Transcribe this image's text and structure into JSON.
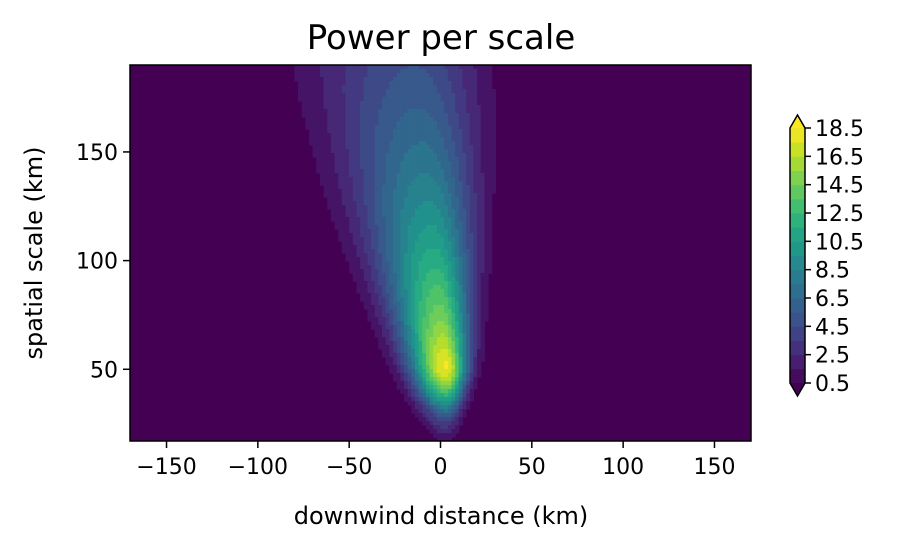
{
  "chart_data": {
    "type": "heatmap",
    "subtype": "filled-contour",
    "title": "Power per scale",
    "xlabel": "downwind distance (km)",
    "ylabel": "spatial scale (km)",
    "xlim": [
      -170,
      170
    ],
    "ylim": [
      17,
      190
    ],
    "xticks": [
      -150,
      -100,
      -50,
      0,
      50,
      100,
      150
    ],
    "xtick_labels": [
      "−150",
      "−100",
      "−50",
      "0",
      "50",
      "100",
      "150"
    ],
    "yticks": [
      50,
      100,
      150
    ],
    "ytick_labels": [
      "50",
      "100",
      "150"
    ],
    "colormap": "viridis",
    "colorbar": {
      "extend": "both",
      "levels": [
        0.5,
        1.5,
        2.5,
        3.5,
        4.5,
        5.5,
        6.5,
        7.5,
        8.5,
        9.5,
        10.5,
        11.5,
        12.5,
        13.5,
        14.5,
        15.5,
        16.5,
        17.5,
        18.5
      ],
      "tick_values": [
        0.5,
        2.5,
        4.5,
        6.5,
        8.5,
        10.5,
        12.5,
        14.5,
        16.5,
        18.5
      ],
      "tick_labels": [
        "0.5",
        "2.5",
        "4.5",
        "6.5",
        "8.5",
        "10.5",
        "12.5",
        "14.5",
        "16.5",
        "18.5"
      ]
    },
    "field": {
      "description_units": "power",
      "peak": {
        "x": 3,
        "y": 52,
        "value": 18.5
      },
      "samples": [
        {
          "x": 0,
          "y": 50,
          "value": 18
        },
        {
          "x": 0,
          "y": 100,
          "value": 12
        },
        {
          "x": 0,
          "y": 150,
          "value": 9
        },
        {
          "x": 0,
          "y": 185,
          "value": 7
        },
        {
          "x": -50,
          "y": 150,
          "value": 3
        },
        {
          "x": 40,
          "y": 150,
          "value": 2
        },
        {
          "x": 0,
          "y": 20,
          "value": 3
        }
      ]
    }
  }
}
